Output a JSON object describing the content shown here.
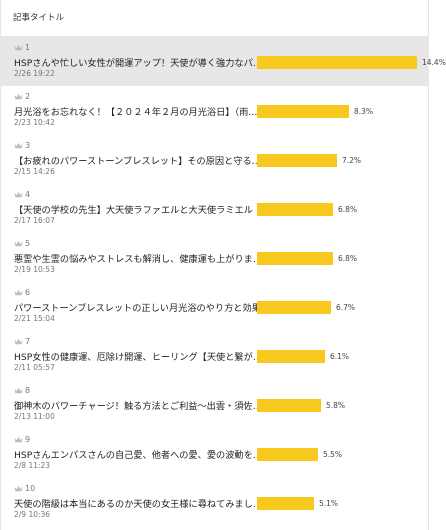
{
  "header": {
    "title": "記事タイトル"
  },
  "bar_color": "#f7c81e",
  "crown_icon": "crown-icon",
  "articles": [
    {
      "rank": "1",
      "title": "HSPさんや忙しい女性が開運アップ！天使が導く強力なパ…",
      "date": "2/26 19:22",
      "percent_label": "14.4%",
      "percent": 14.4,
      "highlighted": true
    },
    {
      "rank": "2",
      "title": "月光浴をお忘れなく！【２０２４年２月の月光浴日】（雨…",
      "date": "2/23 10:42",
      "percent_label": "8.3%",
      "percent": 8.3
    },
    {
      "rank": "3",
      "title": "【お疲れのパワーストーンブレスレット】その原因と守る…",
      "date": "2/15 14:26",
      "percent_label": "7.2%",
      "percent": 7.2
    },
    {
      "rank": "4",
      "title": "【天使の学校の先生】大天使ラファエルと大天使ラミエル",
      "date": "2/17 16:07",
      "percent_label": "6.8%",
      "percent": 6.8
    },
    {
      "rank": "5",
      "title": "悪霊や生霊の悩みやストレスも解消し、健康運も上がりま…",
      "date": "2/19 10:53",
      "percent_label": "6.8%",
      "percent": 6.8
    },
    {
      "rank": "6",
      "title": "パワーストーンブレスレットの正しい月光浴のやり方と効果",
      "date": "2/21 15:04",
      "percent_label": "6.7%",
      "percent": 6.7
    },
    {
      "rank": "7",
      "title": "HSP女性の健康運、厄除け開運、ヒーリング【天使と繋が…",
      "date": "2/11 05:57",
      "percent_label": "6.1%",
      "percent": 6.1
    },
    {
      "rank": "8",
      "title": "御神木のパワーチャージ！触る方法とご利益〜出雲・須佐…",
      "date": "2/13 11:00",
      "percent_label": "5.8%",
      "percent": 5.8
    },
    {
      "rank": "9",
      "title": "HSPさんエンパスさんの自己愛、他者への愛、愛の波動を…",
      "date": "2/8 11:23",
      "percent_label": "5.5%",
      "percent": 5.5
    },
    {
      "rank": "10",
      "title": "天使の階級は本当にあるのか天使の女王様に尋ねてみまし…",
      "date": "2/9 10:36",
      "percent_label": "5.1%",
      "percent": 5.1
    }
  ]
}
